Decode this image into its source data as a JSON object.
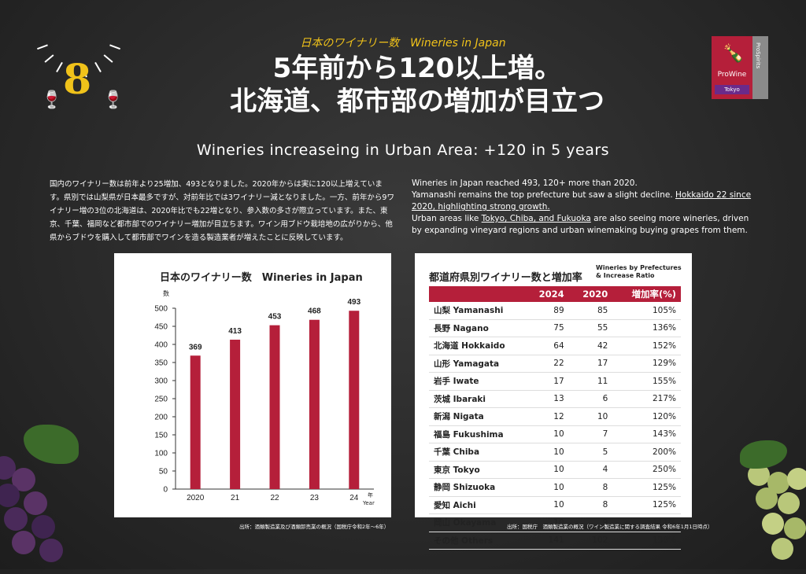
{
  "badge": {
    "number": "8"
  },
  "kicker": "日本のワイナリー数　Wineries in Japan",
  "title_line1": "5年前から120以上増。",
  "title_line2": "北海道、都市部の増加が目立つ",
  "subtitle_en": "Wineries increaseing in Urban Area: +120 in 5 years",
  "logo": {
    "brand": "ProWine",
    "sub": "ProSpirits",
    "city": "Tokyo"
  },
  "para_jp": "国内のワイナリー数は前年より25増加、493となりました。2020年からは実に120以上増えています。県別では山梨県が日本最多ですが、対前年比では3ワイナリー減となりました。一方、前年から9ワイナリー増の3位の北海道は、2020年比でも22増となり、参入数の多さが際立っています。また、東京、千葉、福岡など都市部でのワイナリー増加が目立ちます。ワイン用ブドウ栽培地の広がりから、他県からブドウを購入して都市部でワインを造る製造業者が増えたことに反映しています。",
  "para_en": {
    "line1": "Wineries in Japan reached 493,  120+ more than 2020.",
    "line2a": "Yamanashi remains the top prefecture but saw a slight decline. ",
    "line2b": "Hokkaido 22 since 2020, highlighting strong growth.",
    "line3a": "Urban areas like ",
    "line3b": "Tokyo, Chiba, and Fukuoka",
    "line3c": " are also seeing more wineries, driven by expanding vineyard regions and urban winemaking buying grapes from them."
  },
  "chart_panel": {
    "title": "日本のワイナリー数　Wineries in Japan",
    "source": "出所：酒類製造業及び酒類卸売業の概況（国税庁令和2年～6年）"
  },
  "table_panel": {
    "title": "都道府県別ワイナリー数と増加率",
    "title_en": "Wineries by Prefectures & Increase Ratio",
    "headers": [
      "",
      "2024",
      "2020",
      "増加率(%)"
    ],
    "rows": [
      [
        "山梨 Yamanashi",
        "89",
        "85",
        "105%"
      ],
      [
        "長野 Nagano",
        "75",
        "55",
        "136%"
      ],
      [
        "北海道 Hokkaido",
        "64",
        "42",
        "152%"
      ],
      [
        "山形 Yamagata",
        "22",
        "17",
        "129%"
      ],
      [
        "岩手 Iwate",
        "17",
        "11",
        "155%"
      ],
      [
        "茨城 Ibaraki",
        "13",
        "6",
        "217%"
      ],
      [
        "新潟 Nigata",
        "12",
        "10",
        "120%"
      ],
      [
        "福島 Fukushima",
        "10",
        "7",
        "143%"
      ],
      [
        "千葉 Chiba",
        "10",
        "5",
        "200%"
      ],
      [
        "東京 Tokyo",
        "10",
        "4",
        "250%"
      ],
      [
        "静岡 Shizuoka",
        "10",
        "8",
        "125%"
      ],
      [
        "愛知 Aichi",
        "10",
        "8",
        "125%"
      ],
      [
        "岡山 Okayama",
        "10",
        "9",
        "111%"
      ],
      [
        "その他 Others",
        "141",
        "102",
        "138%"
      ]
    ],
    "source": "出所：国税庁　酒類製造業の概況（ワイン製造業に関する調査結果 令和6年1月1日時点）"
  },
  "chart_data": {
    "type": "bar",
    "categories": [
      "2020",
      "21",
      "22",
      "23",
      "24"
    ],
    "values": [
      369,
      413,
      453,
      468,
      493
    ],
    "ylabel": "数",
    "xlabel": "年\nYear",
    "ylim": [
      0,
      500
    ],
    "yticks": [
      0,
      50,
      100,
      150,
      200,
      250,
      300,
      350,
      400,
      450,
      500
    ],
    "bar_color": "#b51f3a"
  }
}
